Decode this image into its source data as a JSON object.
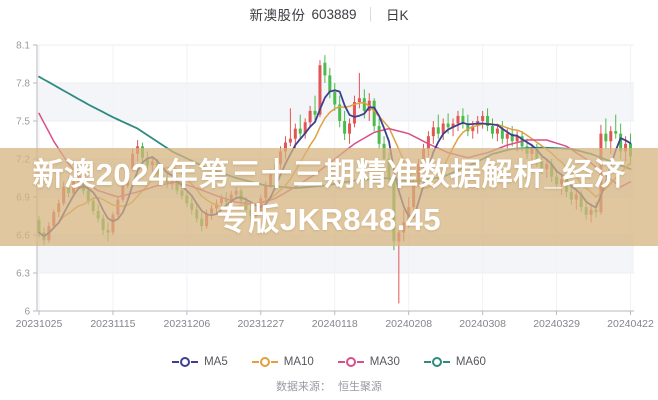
{
  "header": {
    "stock_name": "新澳股份",
    "stock_code": "603889",
    "separator": "│",
    "period": "日K"
  },
  "watermark": {
    "line1": "新澳2024年第三十三期精准数据解析_经济",
    "line2": "专版JKR848.45"
  },
  "footer": {
    "source_label": "数据来源：",
    "source_value": "恒生聚源"
  },
  "chart_data": {
    "type": "candlestick",
    "title": "新澳股份 603889 日K",
    "y_axis": {
      "ticks": [
        8.1,
        7.8,
        7.5,
        7.2,
        6.9,
        6.6,
        6.3,
        6
      ],
      "max": 8.1,
      "min": 6.0
    },
    "x_axis": {
      "tick_labels": [
        "20231025",
        "20231115",
        "20231206",
        "20231227",
        "20240118",
        "20240208",
        "20240308",
        "20240329",
        "20240422"
      ],
      "tick_indices": [
        0,
        15,
        30,
        45,
        60,
        75,
        90,
        105,
        120
      ]
    },
    "legend": [
      {
        "key": "ma5",
        "label": "MA5",
        "color": "#3f3e8f"
      },
      {
        "key": "ma10",
        "label": "MA10",
        "color": "#e0a03e"
      },
      {
        "key": "ma30",
        "label": "MA30",
        "color": "#d94f8a"
      },
      {
        "key": "ma60",
        "label": "MA60",
        "color": "#2e8b80"
      }
    ],
    "colors": {
      "up": "#e25555",
      "down": "#4bbb4b",
      "ma5": "#3f3e8f",
      "ma10": "#e0a03e",
      "ma30": "#d94f8a",
      "ma60": "#2e8b80",
      "stripe": "#f3f5f9",
      "axis": "#b9bac0",
      "grid": "#eceef2",
      "vgrid": "#f1f2f6",
      "watermark_band": "rgba(214,180,128,0.75)"
    },
    "candles": [
      [
        6.72,
        6.75,
        6.58,
        6.62
      ],
      [
        6.62,
        6.66,
        6.52,
        6.56
      ],
      [
        6.56,
        6.7,
        6.54,
        6.67
      ],
      [
        6.67,
        6.8,
        6.65,
        6.78
      ],
      [
        6.78,
        6.88,
        6.74,
        6.85
      ],
      [
        6.85,
        7.02,
        6.83,
        6.98
      ],
      [
        6.98,
        7.06,
        6.9,
        6.93
      ],
      [
        6.93,
        7.05,
        6.9,
        7.02
      ],
      [
        7.02,
        7.08,
        6.96,
        7.05
      ],
      [
        7.05,
        7.06,
        6.92,
        6.95
      ],
      [
        6.95,
        6.98,
        6.84,
        6.87
      ],
      [
        6.87,
        6.9,
        6.76,
        6.79
      ],
      [
        6.79,
        6.84,
        6.7,
        6.73
      ],
      [
        6.73,
        6.76,
        6.6,
        6.64
      ],
      [
        6.64,
        6.7,
        6.55,
        6.62
      ],
      [
        6.62,
        6.78,
        6.6,
        6.76
      ],
      [
        6.76,
        6.9,
        6.74,
        6.88
      ],
      [
        6.88,
        7.02,
        6.86,
        6.99
      ],
      [
        6.99,
        7.15,
        6.97,
        7.12
      ],
      [
        7.12,
        7.28,
        7.1,
        7.24
      ],
      [
        7.24,
        7.35,
        7.18,
        7.3
      ],
      [
        7.3,
        7.33,
        7.18,
        7.21
      ],
      [
        7.21,
        7.26,
        7.12,
        7.15
      ],
      [
        7.15,
        7.22,
        7.1,
        7.18
      ],
      [
        7.18,
        7.2,
        7.05,
        7.08
      ],
      [
        7.08,
        7.14,
        7.02,
        7.05
      ],
      [
        7.05,
        7.1,
        6.97,
        7.0
      ],
      [
        7.0,
        7.08,
        6.96,
        7.04
      ],
      [
        7.04,
        7.06,
        6.92,
        6.95
      ],
      [
        6.95,
        7.0,
        6.88,
        6.91
      ],
      [
        6.91,
        6.95,
        6.82,
        6.85
      ],
      [
        6.85,
        6.9,
        6.76,
        6.8
      ],
      [
        6.8,
        6.84,
        6.7,
        6.73
      ],
      [
        6.73,
        6.78,
        6.63,
        6.67
      ],
      [
        6.67,
        6.8,
        6.65,
        6.77
      ],
      [
        6.77,
        6.84,
        6.72,
        6.81
      ],
      [
        6.81,
        6.88,
        6.76,
        6.85
      ],
      [
        6.85,
        6.92,
        6.8,
        6.89
      ],
      [
        6.89,
        6.94,
        6.82,
        6.86
      ],
      [
        6.86,
        6.95,
        6.84,
        6.92
      ],
      [
        6.92,
        6.98,
        6.88,
        6.95
      ],
      [
        6.95,
        6.97,
        6.84,
        6.87
      ],
      [
        6.87,
        6.9,
        6.76,
        6.8
      ],
      [
        6.8,
        6.85,
        6.72,
        6.75
      ],
      [
        6.75,
        6.82,
        6.7,
        6.79
      ],
      [
        6.79,
        6.92,
        6.77,
        6.89
      ],
      [
        6.89,
        7.02,
        6.87,
        6.99
      ],
      [
        6.99,
        7.12,
        6.97,
        7.08
      ],
      [
        7.08,
        7.2,
        7.02,
        7.16
      ],
      [
        7.16,
        7.3,
        7.12,
        7.26
      ],
      [
        7.26,
        7.38,
        7.2,
        7.33
      ],
      [
        7.33,
        7.6,
        7.3,
        7.36
      ],
      [
        7.36,
        7.48,
        7.28,
        7.44
      ],
      [
        7.44,
        7.55,
        7.35,
        7.4
      ],
      [
        7.4,
        7.52,
        7.36,
        7.49
      ],
      [
        7.49,
        7.62,
        7.45,
        7.58
      ],
      [
        7.58,
        7.7,
        7.5,
        7.55
      ],
      [
        7.55,
        7.98,
        7.53,
        7.94
      ],
      [
        7.96,
        8.02,
        7.8,
        7.86
      ],
      [
        7.86,
        7.92,
        7.68,
        7.73
      ],
      [
        7.73,
        7.8,
        7.58,
        7.63
      ],
      [
        7.63,
        7.7,
        7.45,
        7.5
      ],
      [
        7.5,
        7.58,
        7.35,
        7.4
      ],
      [
        7.4,
        7.52,
        7.32,
        7.48
      ],
      [
        7.48,
        7.7,
        7.45,
        7.65
      ],
      [
        7.65,
        7.88,
        7.6,
        7.68
      ],
      [
        7.68,
        7.75,
        7.52,
        7.58
      ],
      [
        7.58,
        7.72,
        7.5,
        7.66
      ],
      [
        7.66,
        7.68,
        7.42,
        7.46
      ],
      [
        7.46,
        7.52,
        7.28,
        7.32
      ],
      [
        7.32,
        7.38,
        7.15,
        7.2
      ],
      [
        7.2,
        7.25,
        7.0,
        7.05
      ],
      [
        7.05,
        7.08,
        6.48,
        6.55
      ],
      [
        6.55,
        6.68,
        6.06,
        6.62
      ],
      [
        6.62,
        6.8,
        6.55,
        6.7
      ],
      [
        6.7,
        6.9,
        6.66,
        6.82
      ],
      [
        6.82,
        7.05,
        6.8,
        7.0
      ],
      [
        7.0,
        7.2,
        6.98,
        7.16
      ],
      [
        7.16,
        7.32,
        7.12,
        7.28
      ],
      [
        7.28,
        7.42,
        7.22,
        7.38
      ],
      [
        7.38,
        7.5,
        7.32,
        7.45
      ],
      [
        7.45,
        7.55,
        7.36,
        7.4
      ],
      [
        7.4,
        7.52,
        7.35,
        7.48
      ],
      [
        7.48,
        7.56,
        7.4,
        7.45
      ],
      [
        7.45,
        7.52,
        7.38,
        7.48
      ],
      [
        7.48,
        7.58,
        7.42,
        7.54
      ],
      [
        7.54,
        7.6,
        7.44,
        7.48
      ],
      [
        7.48,
        7.55,
        7.38,
        7.42
      ],
      [
        7.42,
        7.5,
        7.36,
        7.46
      ],
      [
        7.46,
        7.54,
        7.4,
        7.5
      ],
      [
        7.5,
        7.58,
        7.44,
        7.54
      ],
      [
        7.54,
        7.6,
        7.42,
        7.46
      ],
      [
        7.46,
        7.52,
        7.36,
        7.4
      ],
      [
        7.4,
        7.48,
        7.34,
        7.44
      ],
      [
        7.44,
        7.5,
        7.32,
        7.36
      ],
      [
        7.36,
        7.44,
        7.28,
        7.4
      ],
      [
        7.4,
        7.46,
        7.3,
        7.34
      ],
      [
        7.34,
        7.42,
        7.26,
        7.38
      ],
      [
        7.38,
        7.42,
        7.26,
        7.3
      ],
      [
        7.3,
        7.36,
        7.2,
        7.24
      ],
      [
        7.24,
        7.32,
        7.16,
        7.28
      ],
      [
        7.28,
        7.32,
        7.14,
        7.18
      ],
      [
        7.18,
        7.24,
        7.08,
        7.12
      ],
      [
        7.12,
        7.2,
        7.05,
        7.16
      ],
      [
        7.16,
        7.2,
        7.02,
        7.06
      ],
      [
        7.06,
        7.12,
        6.96,
        7.0
      ],
      [
        7.0,
        7.08,
        6.92,
        7.04
      ],
      [
        7.04,
        7.08,
        6.9,
        6.94
      ],
      [
        6.94,
        7.0,
        6.84,
        6.88
      ],
      [
        6.88,
        6.96,
        6.8,
        6.92
      ],
      [
        6.92,
        6.95,
        6.78,
        6.82
      ],
      [
        6.82,
        6.88,
        6.72,
        6.76
      ],
      [
        6.76,
        6.85,
        6.7,
        6.8
      ],
      [
        6.8,
        6.86,
        6.74,
        6.78
      ],
      [
        6.78,
        7.47,
        6.76,
        7.4
      ],
      [
        7.4,
        7.52,
        7.28,
        7.34
      ],
      [
        7.34,
        7.46,
        7.24,
        7.42
      ],
      [
        7.42,
        7.55,
        7.36,
        7.4
      ],
      [
        7.4,
        7.48,
        7.2,
        7.26
      ],
      [
        7.26,
        7.38,
        7.18,
        7.32
      ],
      [
        7.32,
        7.4,
        7.15,
        7.22
      ]
    ],
    "ma30_anchors": [
      [
        0,
        7.56
      ],
      [
        3,
        7.34
      ],
      [
        6,
        7.16
      ],
      [
        9,
        7.03
      ],
      [
        12,
        6.95
      ],
      [
        16,
        6.9
      ],
      [
        20,
        6.94
      ],
      [
        24,
        6.99
      ],
      [
        28,
        7.02
      ],
      [
        32,
        6.97
      ],
      [
        36,
        6.91
      ],
      [
        40,
        6.86
      ],
      [
        44,
        6.84
      ],
      [
        48,
        6.89
      ],
      [
        52,
        6.98
      ],
      [
        56,
        7.08
      ],
      [
        60,
        7.2
      ],
      [
        64,
        7.32
      ],
      [
        68,
        7.41
      ],
      [
        71,
        7.44
      ],
      [
        75,
        7.4
      ],
      [
        79,
        7.32
      ],
      [
        83,
        7.25
      ],
      [
        87,
        7.21
      ],
      [
        91,
        7.25
      ],
      [
        95,
        7.31
      ],
      [
        99,
        7.35
      ],
      [
        103,
        7.35
      ],
      [
        107,
        7.3
      ],
      [
        111,
        7.2
      ],
      [
        115,
        7.07
      ],
      [
        118,
        6.98
      ],
      [
        120,
        7.02
      ]
    ],
    "ma60_anchors": [
      [
        0,
        7.85
      ],
      [
        5,
        7.74
      ],
      [
        10,
        7.63
      ],
      [
        15,
        7.53
      ],
      [
        20,
        7.44
      ],
      [
        27,
        7.26
      ],
      [
        34,
        7.13
      ],
      [
        40,
        7.05
      ],
      [
        46,
        6.99
      ],
      [
        52,
        6.97
      ],
      [
        58,
        6.99
      ],
      [
        64,
        7.03
      ],
      [
        70,
        7.05
      ],
      [
        76,
        7.02
      ],
      [
        82,
        7.06
      ],
      [
        88,
        7.16
      ],
      [
        92,
        7.24
      ],
      [
        96,
        7.28
      ],
      [
        102,
        7.29
      ],
      [
        108,
        7.28
      ],
      [
        112,
        7.24
      ],
      [
        116,
        7.18
      ],
      [
        120,
        7.12
      ]
    ]
  }
}
